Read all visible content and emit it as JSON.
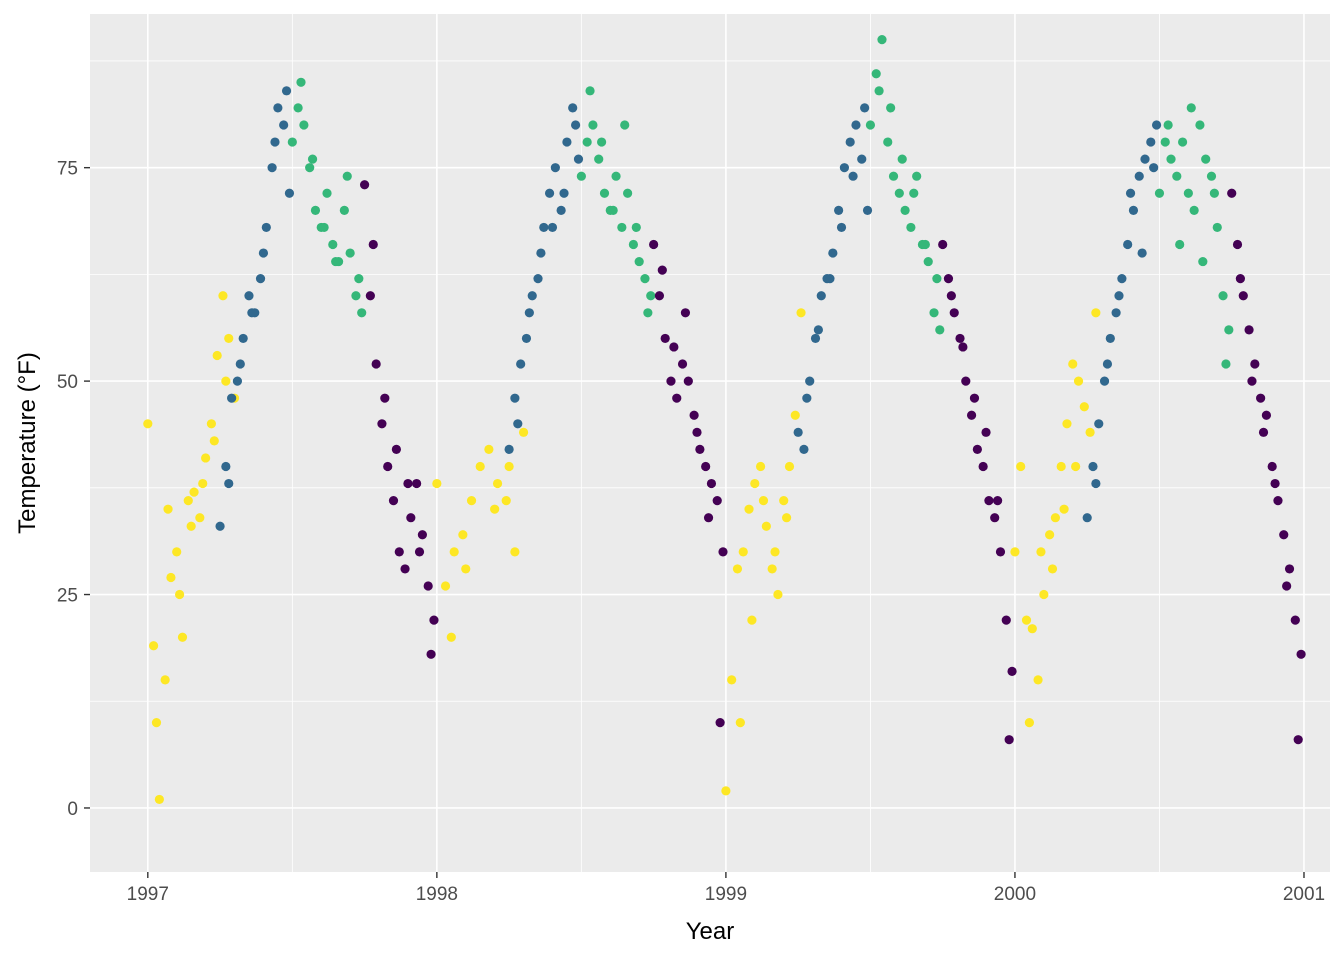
{
  "chart_data": {
    "type": "scatter",
    "title": "",
    "xlabel": "Year",
    "ylabel": "Temperature (°F)",
    "x_ticks": [
      "1997",
      "1998",
      "1999",
      "2000",
      "2001"
    ],
    "y_ticks": [
      "0",
      "25",
      "50",
      "75"
    ],
    "xlim": [
      1996.8,
      2001.09
    ],
    "ylim": [
      -7.5,
      93
    ],
    "grid": true,
    "legend": "none",
    "panel_color": "#ebebeb",
    "grid_color": "#ffffff",
    "season_colors": {
      "winter": "#440154",
      "spring": "#fde725",
      "summer": "#31688e",
      "fall": "#35b779"
    },
    "series": [
      {
        "season": "spring",
        "x": [
          1997.0,
          1997.02,
          1997.04,
          1997.06,
          1997.08,
          1997.1,
          1997.12,
          1997.14,
          1997.16,
          1997.18,
          1997.2,
          1997.22,
          1997.24,
          1997.26,
          1997.28,
          1997.3,
          1997.03,
          1997.07,
          1997.11,
          1997.15,
          1997.19,
          1997.23,
          1997.27,
          1998.0,
          1998.03,
          1998.06,
          1998.09,
          1998.12,
          1998.15,
          1998.18,
          1998.21,
          1998.24,
          1998.27,
          1998.3,
          1998.05,
          1998.1,
          1998.2,
          1998.25,
          1999.0,
          1999.02,
          1999.04,
          1999.06,
          1999.08,
          1999.1,
          1999.12,
          1999.14,
          1999.16,
          1999.18,
          1999.2,
          1999.22,
          1999.24,
          1999.26,
          1999.05,
          1999.09,
          1999.13,
          1999.17,
          1999.21,
          2000.0,
          2000.02,
          2000.04,
          2000.06,
          2000.08,
          2000.1,
          2000.12,
          2000.14,
          2000.16,
          2000.18,
          2000.2,
          2000.22,
          2000.24,
          2000.26,
          2000.28,
          2000.05,
          2000.09,
          2000.13,
          2000.17,
          2000.21
        ],
        "y": [
          45,
          19,
          1,
          15,
          27,
          30,
          20,
          36,
          37,
          34,
          41,
          45,
          53,
          60,
          55,
          48,
          10,
          35,
          25,
          33,
          38,
          43,
          50,
          38,
          26,
          30,
          32,
          36,
          40,
          42,
          38,
          36,
          30,
          44,
          20,
          28,
          35,
          40,
          2,
          15,
          28,
          30,
          35,
          38,
          40,
          33,
          28,
          25,
          36,
          40,
          46,
          58,
          10,
          22,
          36,
          30,
          34,
          30,
          40,
          22,
          21,
          15,
          25,
          32,
          34,
          40,
          45,
          52,
          50,
          47,
          44,
          58,
          10,
          30,
          28,
          35,
          40
        ]
      },
      {
        "season": "summer",
        "x": [
          1997.25,
          1997.27,
          1997.29,
          1997.31,
          1997.33,
          1997.35,
          1997.37,
          1997.39,
          1997.41,
          1997.43,
          1997.45,
          1997.47,
          1997.49,
          1997.28,
          1997.32,
          1997.36,
          1997.4,
          1997.44,
          1997.48,
          1998.25,
          1998.27,
          1998.29,
          1998.31,
          1998.33,
          1998.35,
          1998.37,
          1998.39,
          1998.41,
          1998.43,
          1998.45,
          1998.47,
          1998.49,
          1998.28,
          1998.32,
          1998.36,
          1998.4,
          1998.44,
          1998.48,
          1999.25,
          1999.27,
          1999.29,
          1999.31,
          1999.33,
          1999.35,
          1999.37,
          1999.39,
          1999.41,
          1999.43,
          1999.45,
          1999.47,
          1999.49,
          1999.28,
          1999.32,
          1999.36,
          1999.4,
          1999.44,
          1999.48,
          2000.25,
          2000.27,
          2000.29,
          2000.31,
          2000.33,
          2000.35,
          2000.37,
          2000.39,
          2000.41,
          2000.43,
          2000.45,
          2000.47,
          2000.49,
          2000.28,
          2000.32,
          2000.36,
          2000.4,
          2000.44,
          2000.48
        ],
        "y": [
          33,
          40,
          48,
          50,
          55,
          60,
          58,
          62,
          68,
          75,
          82,
          80,
          72,
          38,
          52,
          58,
          65,
          78,
          84,
          42,
          48,
          52,
          55,
          60,
          62,
          68,
          72,
          75,
          70,
          78,
          82,
          76,
          45,
          58,
          65,
          68,
          72,
          80,
          44,
          42,
          50,
          55,
          60,
          62,
          65,
          70,
          75,
          78,
          80,
          76,
          70,
          48,
          56,
          62,
          68,
          74,
          82,
          34,
          40,
          45,
          50,
          55,
          58,
          62,
          66,
          70,
          74,
          76,
          78,
          80,
          38,
          52,
          60,
          72,
          65,
          75
        ]
      },
      {
        "season": "fall",
        "x": [
          1997.5,
          1997.52,
          1997.54,
          1997.56,
          1997.58,
          1997.6,
          1997.62,
          1997.64,
          1997.66,
          1997.68,
          1997.7,
          1997.72,
          1997.74,
          1997.53,
          1997.57,
          1997.61,
          1997.65,
          1997.69,
          1997.73,
          1998.5,
          1998.52,
          1998.54,
          1998.56,
          1998.58,
          1998.6,
          1998.62,
          1998.64,
          1998.66,
          1998.68,
          1998.7,
          1998.72,
          1998.74,
          1998.53,
          1998.57,
          1998.61,
          1998.65,
          1998.69,
          1998.73,
          1999.5,
          1999.52,
          1999.54,
          1999.56,
          1999.58,
          1999.6,
          1999.62,
          1999.64,
          1999.66,
          1999.68,
          1999.7,
          1999.72,
          1999.74,
          1999.53,
          1999.57,
          1999.61,
          1999.65,
          1999.69,
          1999.73,
          2000.5,
          2000.52,
          2000.54,
          2000.56,
          2000.58,
          2000.6,
          2000.62,
          2000.64,
          2000.66,
          2000.68,
          2000.7,
          2000.72,
          2000.74,
          2000.53,
          2000.57,
          2000.61,
          2000.65,
          2000.69,
          2000.73
        ],
        "y": [
          78,
          82,
          80,
          75,
          70,
          68,
          72,
          66,
          64,
          70,
          65,
          60,
          58,
          85,
          76,
          68,
          64,
          74,
          62,
          74,
          78,
          80,
          76,
          72,
          70,
          74,
          68,
          72,
          66,
          64,
          62,
          60,
          84,
          78,
          70,
          80,
          68,
          58,
          80,
          86,
          90,
          78,
          74,
          72,
          70,
          68,
          74,
          66,
          64,
          58,
          56,
          84,
          82,
          76,
          72,
          66,
          62,
          72,
          78,
          76,
          74,
          78,
          72,
          70,
          80,
          76,
          74,
          68,
          60,
          56,
          80,
          66,
          82,
          64,
          72,
          52
        ]
      },
      {
        "season": "winter",
        "x": [
          1997.75,
          1997.77,
          1997.79,
          1997.81,
          1997.83,
          1997.85,
          1997.87,
          1997.89,
          1997.91,
          1997.93,
          1997.95,
          1997.97,
          1997.99,
          1997.78,
          1997.82,
          1997.86,
          1997.9,
          1997.94,
          1997.98,
          1998.75,
          1998.77,
          1998.79,
          1998.81,
          1998.83,
          1998.85,
          1998.87,
          1998.89,
          1998.91,
          1998.93,
          1998.95,
          1998.97,
          1998.99,
          1998.78,
          1998.82,
          1998.86,
          1998.9,
          1998.94,
          1998.98,
          1999.75,
          1999.77,
          1999.79,
          1999.81,
          1999.83,
          1999.85,
          1999.87,
          1999.89,
          1999.91,
          1999.93,
          1999.95,
          1999.97,
          1999.99,
          1999.78,
          1999.82,
          1999.86,
          1999.9,
          1999.94,
          1999.98,
          2000.75,
          2000.77,
          2000.79,
          2000.81,
          2000.83,
          2000.85,
          2000.87,
          2000.89,
          2000.91,
          2000.93,
          2000.95,
          2000.97,
          2000.99,
          2000.78,
          2000.82,
          2000.86,
          2000.9,
          2000.94,
          2000.98
        ],
        "y": [
          73,
          60,
          52,
          45,
          40,
          36,
          30,
          28,
          34,
          38,
          32,
          26,
          22,
          66,
          48,
          42,
          38,
          30,
          18,
          66,
          60,
          55,
          50,
          48,
          52,
          50,
          46,
          42,
          40,
          38,
          36,
          30,
          63,
          54,
          58,
          44,
          34,
          10,
          66,
          62,
          58,
          55,
          50,
          46,
          42,
          40,
          36,
          34,
          30,
          22,
          16,
          60,
          54,
          48,
          44,
          36,
          8,
          72,
          66,
          60,
          56,
          52,
          48,
          46,
          40,
          36,
          32,
          28,
          22,
          18,
          62,
          50,
          44,
          38,
          26,
          8
        ]
      }
    ]
  }
}
